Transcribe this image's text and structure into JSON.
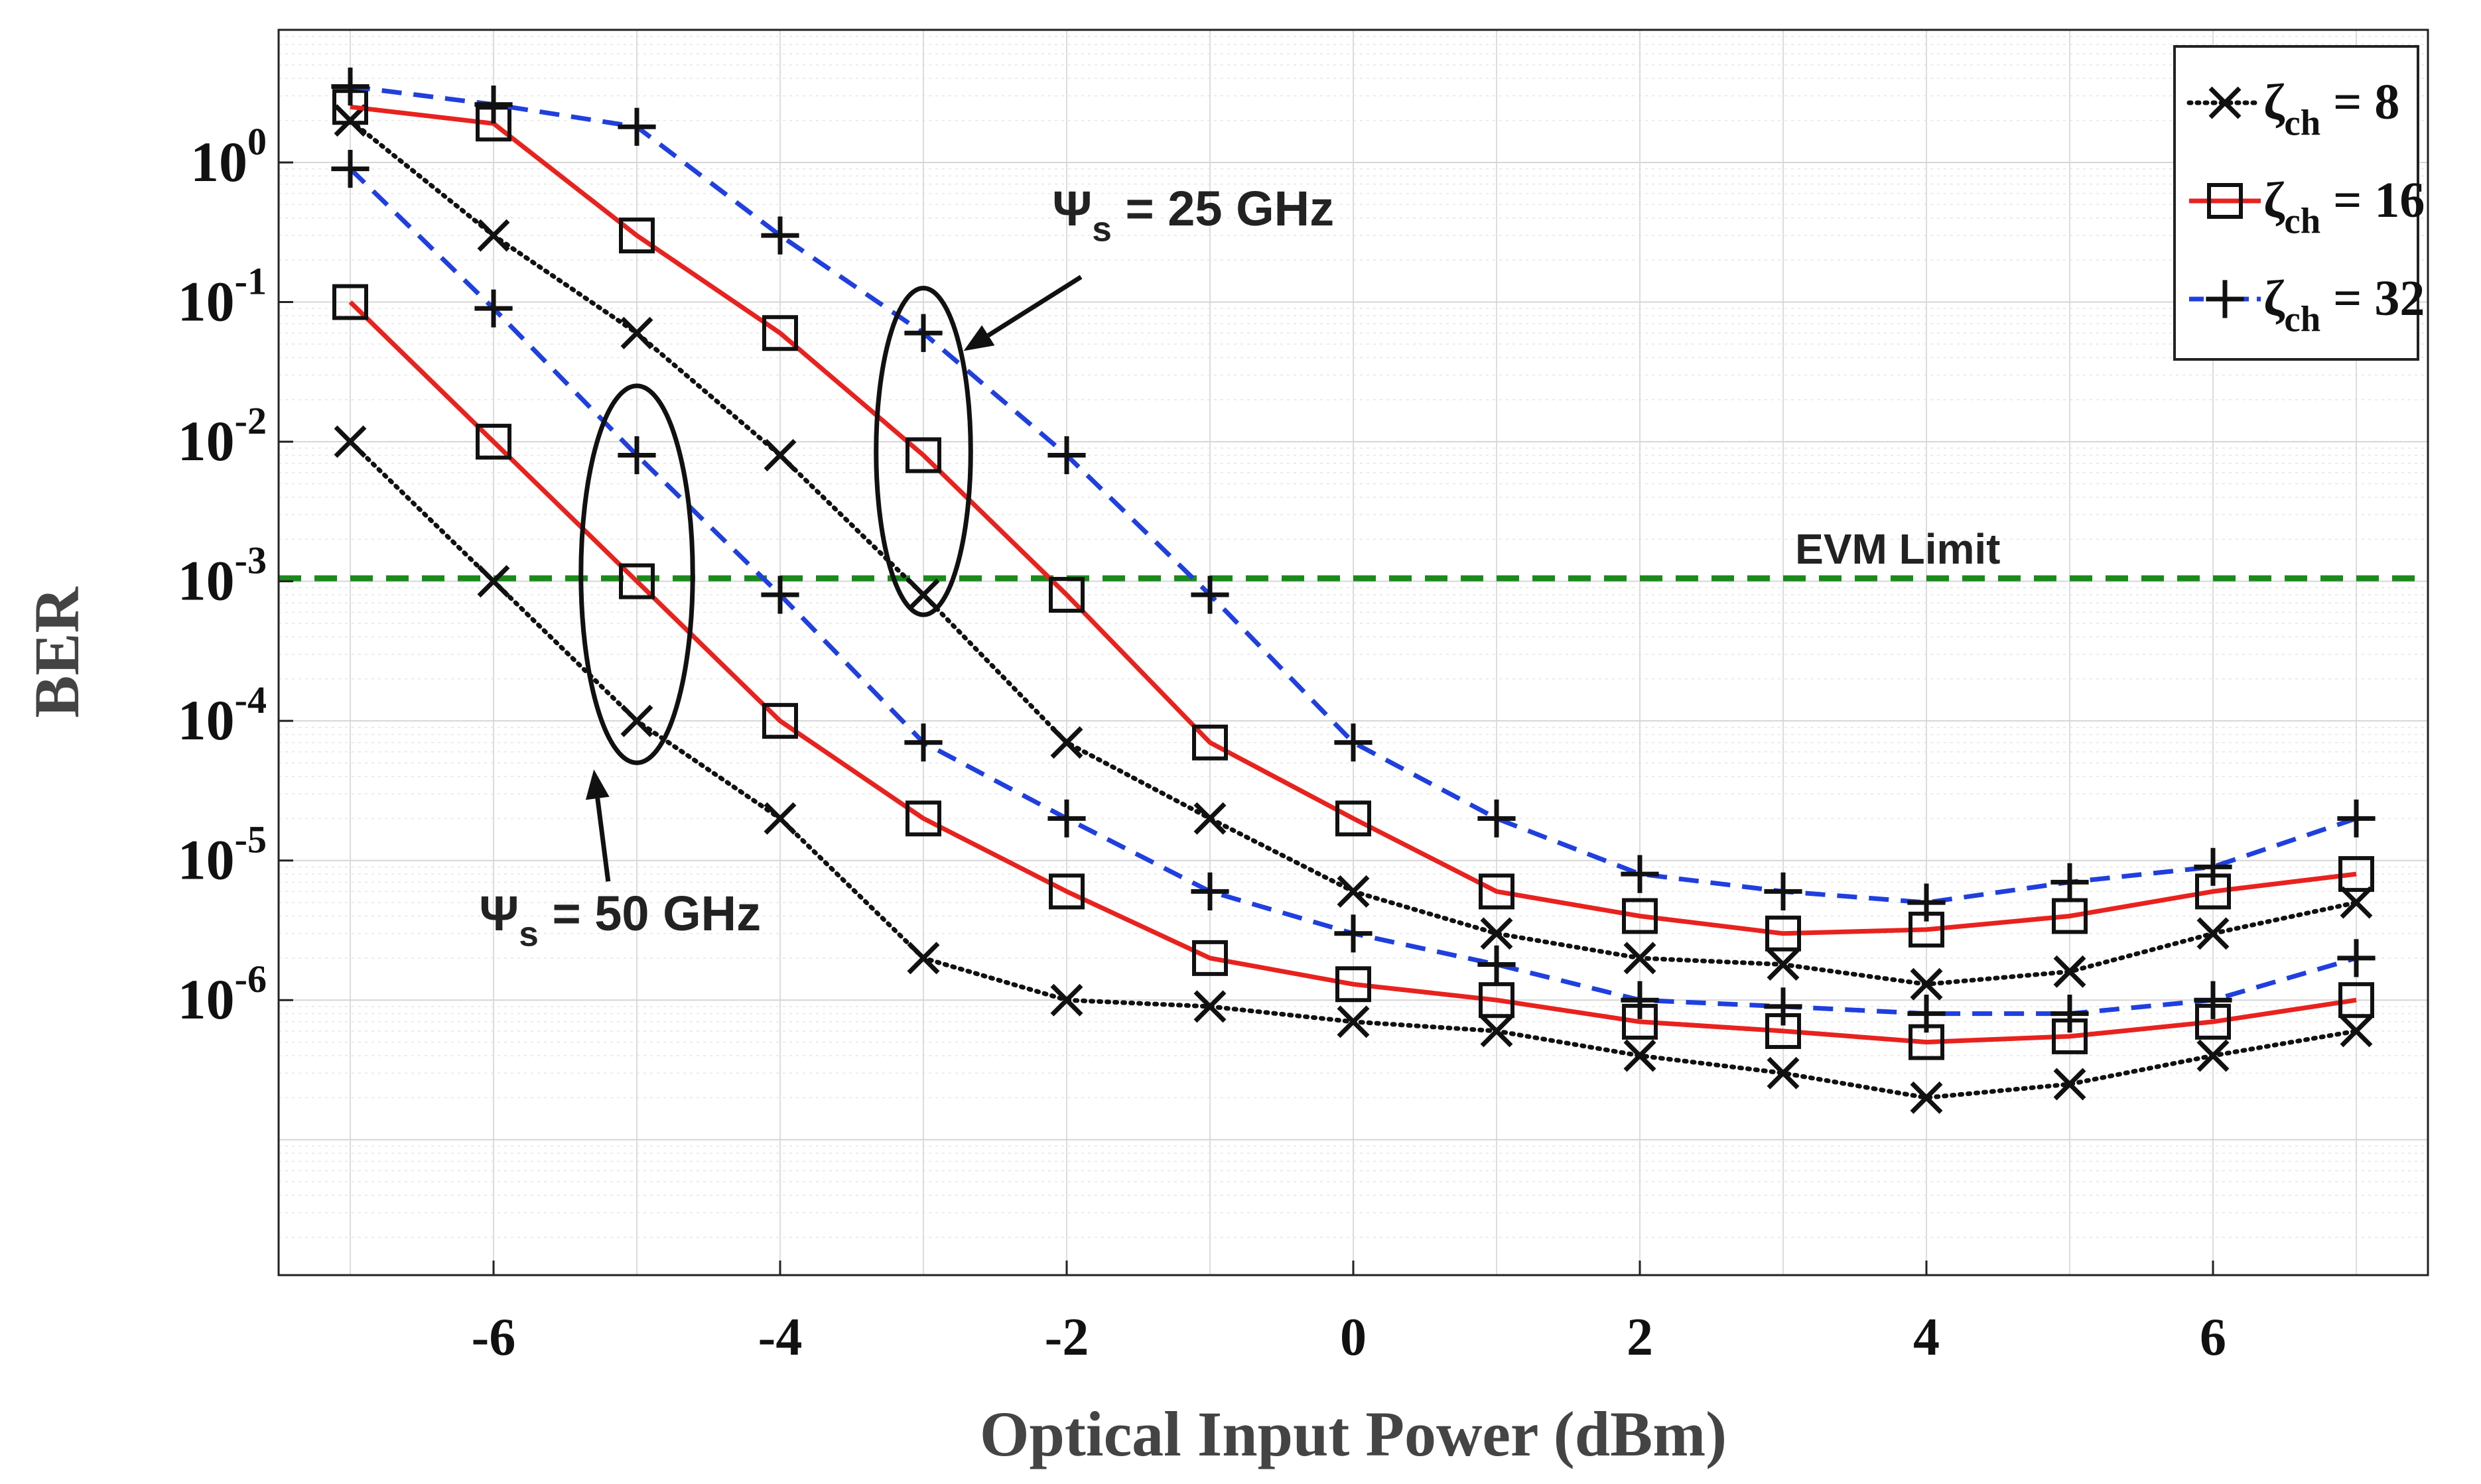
{
  "chart_data": {
    "type": "line",
    "title": "",
    "xlabel": "Optical Input Power (dBm)",
    "ylabel": "BER",
    "xlim": [
      -7.5,
      7.5
    ],
    "ylim_log10": [
      -7.97,
      0.95
    ],
    "yscale": "log",
    "grid": true,
    "x_ticks": [
      -6,
      -4,
      -2,
      0,
      2,
      4,
      6
    ],
    "x_tick_labels": [
      "-6",
      "-4",
      "-2",
      "0",
      "2",
      "4",
      "6"
    ],
    "y_ticks_log10": [
      0,
      -1,
      -2,
      -3,
      -4,
      -5,
      -6
    ],
    "y_tick_labels": [
      {
        "base": "10",
        "exp": "0"
      },
      {
        "base": "10",
        "exp": "-1"
      },
      {
        "base": "10",
        "exp": "-2"
      },
      {
        "base": "10",
        "exp": "-3"
      },
      {
        "base": "10",
        "exp": "-4"
      },
      {
        "base": "10",
        "exp": "-5"
      },
      {
        "base": "10",
        "exp": "-6"
      }
    ],
    "x": [
      -7,
      -6,
      -5,
      -4,
      -3,
      -2,
      -1,
      0,
      1,
      2,
      3,
      4,
      5,
      6,
      7
    ],
    "series": [
      {
        "name": "ζch = 8, Ψs = 25 GHz",
        "group": "25 GHz",
        "legend": 0,
        "color": "#111111",
        "style": "dotted",
        "marker": "x",
        "values": [
          2.0,
          0.3,
          0.06,
          0.008,
          0.0008,
          7e-05,
          2e-05,
          6e-06,
          3e-06,
          2e-06,
          1.8e-06,
          1.3e-06,
          1.6e-06,
          3e-06,
          5e-06
        ]
      },
      {
        "name": "ζch = 16, Ψs = 25 GHz",
        "group": "25 GHz",
        "legend": 1,
        "color": "#e8221e",
        "style": "solid",
        "marker": "square",
        "values": [
          2.5,
          1.9,
          0.3,
          0.06,
          0.008,
          0.0008,
          7e-05,
          2e-05,
          6e-06,
          4e-06,
          3e-06,
          3.2e-06,
          4e-06,
          6e-06,
          8e-06
        ]
      },
      {
        "name": "ζch = 32, Ψs = 25 GHz",
        "group": "25 GHz",
        "legend": 2,
        "color": "#1f3fe0",
        "style": "dashed",
        "marker": "plus",
        "values": [
          3.5,
          2.6,
          1.8,
          0.3,
          0.06,
          0.008,
          0.0008,
          7e-05,
          2e-05,
          8e-06,
          6e-06,
          5e-06,
          7e-06,
          9e-06,
          2e-05
        ]
      },
      {
        "name": "ζch = 8, Ψs = 50 GHz",
        "group": "50 GHz",
        "legend": 0,
        "color": "#111111",
        "style": "dotted",
        "marker": "x",
        "values": [
          0.01,
          0.001,
          0.0001,
          2e-05,
          2e-06,
          1e-06,
          9e-07,
          7e-07,
          6e-07,
          4e-07,
          3e-07,
          2e-07,
          2.5e-07,
          4e-07,
          6e-07
        ]
      },
      {
        "name": "ζch = 16, Ψs = 50 GHz",
        "group": "50 GHz",
        "legend": 1,
        "color": "#e8221e",
        "style": "solid",
        "marker": "square",
        "values": [
          0.1,
          0.01,
          0.001,
          0.0001,
          2e-05,
          6e-06,
          2e-06,
          1.3e-06,
          1e-06,
          7e-07,
          6e-07,
          5e-07,
          5.5e-07,
          7e-07,
          1e-06
        ]
      },
      {
        "name": "ζch = 32, Ψs = 50 GHz",
        "group": "50 GHz",
        "legend": 2,
        "color": "#1f3fe0",
        "style": "dashed",
        "marker": "plus",
        "values": [
          0.9,
          0.09,
          0.008,
          0.0008,
          7e-05,
          2e-05,
          6e-06,
          3e-06,
          1.8e-06,
          1e-06,
          9e-07,
          8e-07,
          8e-07,
          1e-06,
          2e-06
        ]
      }
    ],
    "legend": {
      "placement": "top-right",
      "entries": [
        {
          "symbol": "ζ",
          "sub": "ch",
          "rest": " = 8",
          "color": "#111111",
          "style": "dotted",
          "marker": "x"
        },
        {
          "symbol": "ζ",
          "sub": "ch",
          "rest": " = 16",
          "color": "#e8221e",
          "style": "solid",
          "marker": "square"
        },
        {
          "symbol": "ζ",
          "sub": "ch",
          "rest": " = 32",
          "color": "#1f3fe0",
          "style": "dashed",
          "marker": "plus"
        }
      ]
    },
    "reference_line": {
      "label": "EVM Limit",
      "y": 0.00105,
      "color": "#1a8a1a",
      "style": "dashed"
    },
    "annotations": [
      {
        "symbol": "Ψ",
        "sub": "s",
        "rest": " = 25 GHz",
        "ellipse_center": [
          -3,
          -2.07
        ],
        "ellipse_half_width": 0.33,
        "ellipse_half_height": 1.17
      },
      {
        "symbol": "Ψ",
        "sub": "s",
        "rest": " = 50 GHz",
        "ellipse_center": [
          -5,
          -2.95
        ],
        "ellipse_half_width": 0.39,
        "ellipse_half_height": 1.35
      }
    ]
  }
}
